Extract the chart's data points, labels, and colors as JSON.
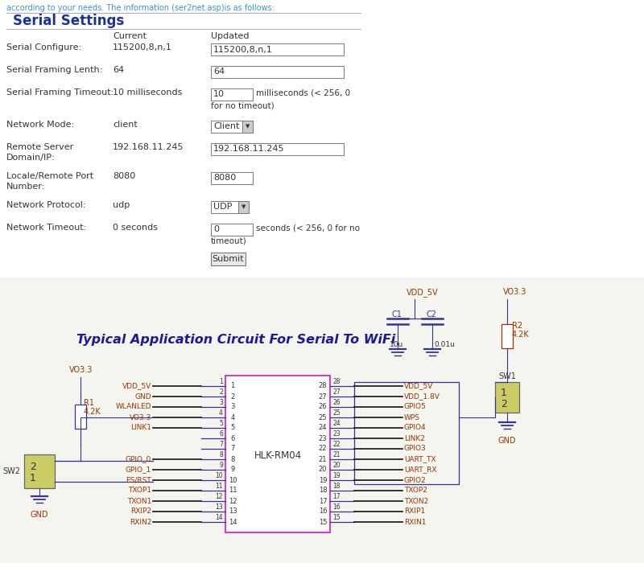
{
  "bg_color": "#ffffff",
  "top_text": "according to your needs. The information (ser2net.asp)is as follows:",
  "top_text_color": "#3399cc",
  "title": "Serial Settings",
  "title_color": "#1a3399",
  "table_header_current": "Current",
  "table_header_updated": "Updated",
  "text_color": "#333333",
  "pin_text_color": "#993300",
  "line_color": "#333399",
  "circuit_title": "Typical Application Circuit For Serial To WiFi",
  "circuit_title_color": "#1a1a99",
  "chip_label": "HLK-RM04",
  "left_pins": [
    "VDD_5V",
    "GND",
    "WLANLED",
    "VO3.3",
    "LINK1",
    "",
    "",
    "GPIO_0",
    "GPIO_1",
    "ES/RST",
    "TXOP1",
    "TXON1",
    "RXIP2",
    "RXIN2"
  ],
  "left_pin_nums": [
    1,
    2,
    3,
    4,
    5,
    6,
    7,
    8,
    9,
    10,
    11,
    12,
    13,
    14
  ],
  "right_pins": [
    "VDD_5V",
    "VDD_1.8V",
    "GPIO5",
    "WPS",
    "GPIO4",
    "LINK2",
    "GPIO3",
    "UART_TX",
    "UART_RX",
    "GPIO2",
    "TXOP2",
    "TXON2",
    "RXIP1",
    "RXIN1"
  ],
  "right_pin_nums": [
    28,
    27,
    26,
    25,
    24,
    23,
    22,
    21,
    20,
    19,
    18,
    17,
    16,
    15
  ]
}
